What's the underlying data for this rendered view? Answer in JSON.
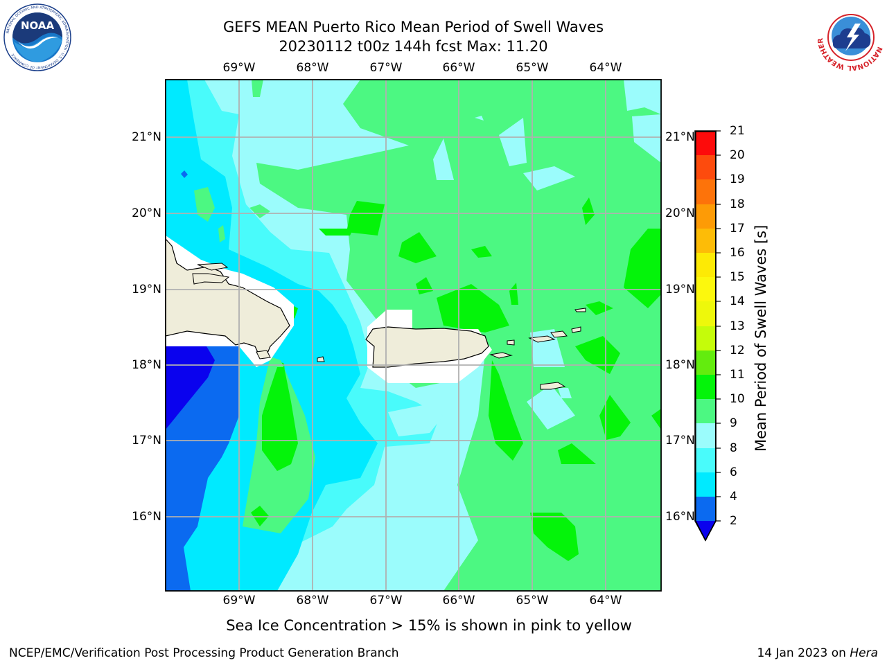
{
  "header": {
    "title_line1": "GEFS MEAN Puerto Rico Mean Period of Swell Waves",
    "title_line2": "20230112 t00z 144h fcst   Max: 11.20"
  },
  "logos": {
    "left_icon": "noaa-logo-icon",
    "left_text": "NOAA",
    "left_ring_text": "NATIONAL OCEANIC AND ATMOSPHERIC ADMINISTRATION · U.S. DEPARTMENT OF COMMERCE",
    "right_icon": "nws-logo-icon",
    "right_ring_text": "NATIONAL WEATHER SERVICE"
  },
  "map": {
    "lon_labels": [
      "69°W",
      "68°W",
      "67°W",
      "66°W",
      "65°W",
      "64°W"
    ],
    "lat_labels": [
      "21°N",
      "20°N",
      "19°N",
      "18°N",
      "17°N",
      "16°N"
    ]
  },
  "colorbar": {
    "label": "Mean Period of Swell Waves [s]",
    "ticks": [
      "21",
      "20",
      "19",
      "18",
      "17",
      "16",
      "15",
      "14",
      "13",
      "12",
      "11",
      "10",
      "9",
      "8",
      "6",
      "4",
      "2"
    ],
    "colors": {
      "2-4": "#0b6af0",
      "4-6": "#00eaff",
      "6-8": "#49fbfb",
      "8-9": "#9bfcfc",
      "9-10": "#4cf882",
      "10-11": "#04f40a",
      "11-12": "#63ec0e",
      "12-13": "#c5fc0a",
      "13-14": "#eef80b",
      "14-15": "#fcf80d",
      "15-16": "#fdea05",
      "16-17": "#fdbc07",
      "17-18": "#fd9b06",
      "18-19": "#fd730a",
      "19-20": "#fd4b0d",
      "20-21": "#fd0b0b",
      "below-2": "#0a02ee",
      "land": "#efedda"
    }
  },
  "caption": "Sea Ice Concentration > 15% is shown in pink to yellow",
  "footer": {
    "left": "NCEP/EMC/Verification Post Processing Product Generation Branch",
    "right_prefix": "14 Jan 2023 on ",
    "right_italic": "Hera"
  }
}
